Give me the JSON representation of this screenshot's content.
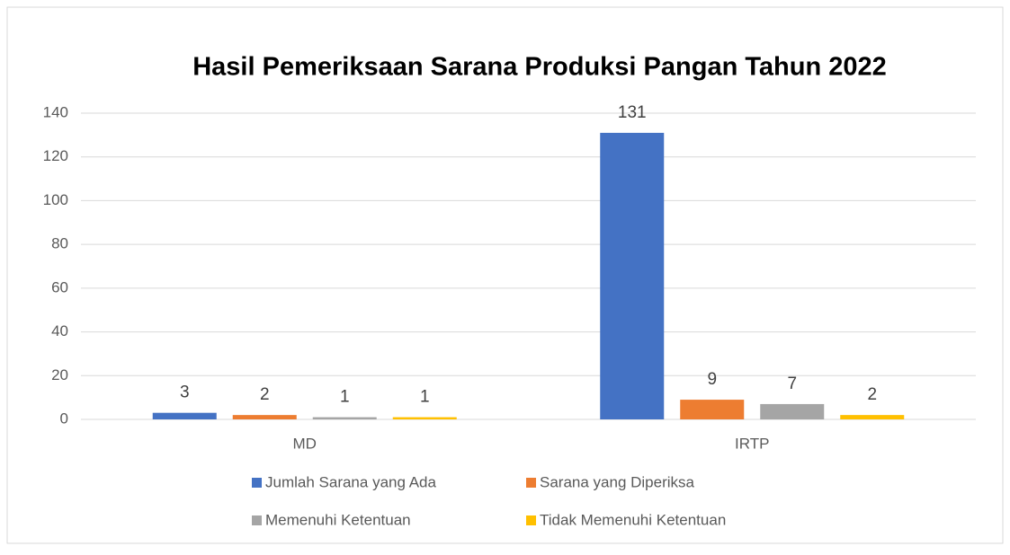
{
  "chart_data": {
    "type": "bar",
    "title": "Hasil Pemeriksaan Sarana Produksi Pangan Tahun 2022",
    "categories": [
      "MD",
      "IRTP"
    ],
    "series": [
      {
        "name": "Jumlah Sarana yang Ada",
        "color": "#4472c4",
        "values": [
          3,
          131
        ]
      },
      {
        "name": "Sarana yang Diperiksa",
        "color": "#ed7d31",
        "values": [
          2,
          9
        ]
      },
      {
        "name": "Memenuhi Ketentuan",
        "color": "#a5a5a5",
        "values": [
          1,
          7
        ]
      },
      {
        "name": "Tidak Memenuhi Ketentuan",
        "color": "#ffc000",
        "values": [
          1,
          2
        ]
      }
    ],
    "ylim": [
      0,
      140
    ],
    "yticks": [
      0,
      20,
      40,
      60,
      80,
      100,
      120,
      140
    ],
    "grid": true,
    "legend": "bottom"
  }
}
